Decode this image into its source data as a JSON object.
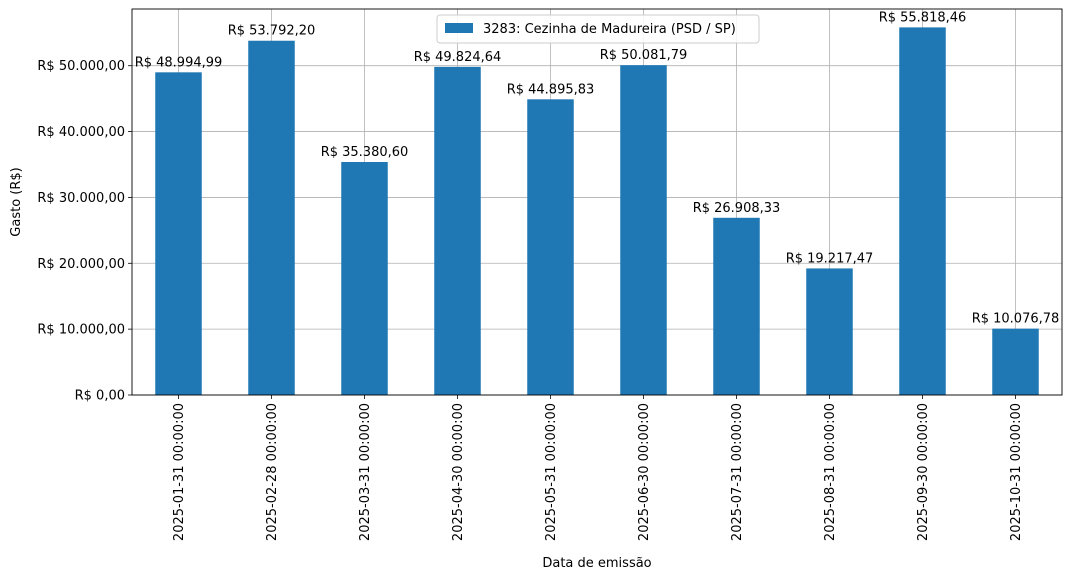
{
  "chart_data": {
    "type": "bar",
    "title": "",
    "xlabel": "Data de emissão",
    "ylabel": "Gasto (R$)",
    "categories": [
      "2025-01-31 00:00:00",
      "2025-02-28 00:00:00",
      "2025-03-31 00:00:00",
      "2025-04-30 00:00:00",
      "2025-05-31 00:00:00",
      "2025-06-30 00:00:00",
      "2025-07-31 00:00:00",
      "2025-08-31 00:00:00",
      "2025-09-30 00:00:00",
      "2025-10-31 00:00:00"
    ],
    "series": [
      {
        "name": "3283: Cezinha de Madureira (PSD / SP)",
        "color": "#1f77b4",
        "values": [
          48994.99,
          53792.2,
          35380.6,
          49824.64,
          44895.83,
          50081.79,
          26908.33,
          19217.47,
          55818.46,
          10076.78
        ]
      }
    ],
    "data_labels": [
      "R$ 48.994,99",
      "R$ 53.792,20",
      "R$ 35.380,60",
      "R$ 49.824,64",
      "R$ 44.895,83",
      "R$ 50.081,79",
      "R$ 26.908,33",
      "R$ 19.217,47",
      "R$ 55.818,46",
      "R$ 10.076,78"
    ],
    "yticks": [
      0,
      10000,
      20000,
      30000,
      40000,
      50000
    ],
    "ytick_labels": [
      "R$ 0,00",
      "R$ 10.000,00",
      "R$ 20.000,00",
      "R$ 30.000,00",
      "R$ 40.000,00",
      "R$ 50.000,00"
    ],
    "ylim": [
      0,
      58610
    ],
    "grid": true,
    "legend_position": "top-center"
  }
}
